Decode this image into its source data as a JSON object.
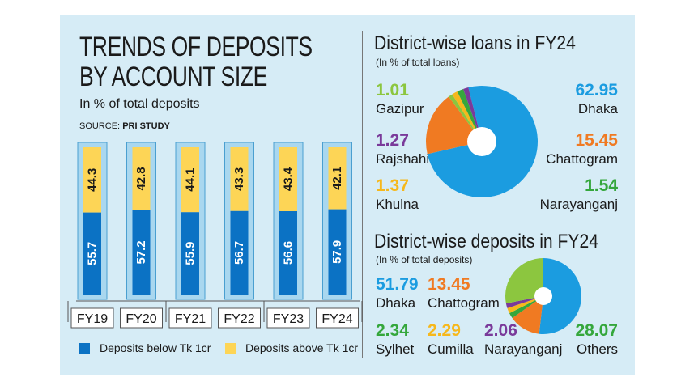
{
  "title": "TRENDS OF DEPOSITS BY ACCOUNT SIZE",
  "subtitle": "In % of total deposits",
  "source_label": "SOURCE:",
  "source_name": "PRI STUDY",
  "colors": {
    "below": "#0b72c4",
    "above": "#fdd556",
    "panel": "#d6ecf6",
    "dhaka": "#1b9ce0",
    "chattogram": "#f07a22",
    "green": "#35a73c",
    "purple": "#7a3a9a",
    "yellow": "#f6b81c",
    "lightgreen": "#8cc63f"
  },
  "legend": {
    "below": "Deposits below Tk 1cr",
    "above": "Deposits above Tk 1cr"
  },
  "loans": {
    "title": "District-wise loans in FY24",
    "subtitle": "(In % of total loans)",
    "items": [
      {
        "name": "Gazipur",
        "value": "1.01"
      },
      {
        "name": "Rajshahi",
        "value": "1.27"
      },
      {
        "name": "Khulna",
        "value": "1.37"
      },
      {
        "name": "Dhaka",
        "value": "62.95"
      },
      {
        "name": "Chattogram",
        "value": "15.45"
      },
      {
        "name": "Narayanganj",
        "value": "1.54"
      }
    ]
  },
  "deposits": {
    "title": "District-wise deposits in FY24",
    "subtitle": "(In % of total deposits)",
    "items": [
      {
        "name": "Dhaka",
        "value": "51.79"
      },
      {
        "name": "Chattogram",
        "value": "13.45"
      },
      {
        "name": "Sylhet",
        "value": "2.34"
      },
      {
        "name": "Cumilla",
        "value": "2.29"
      },
      {
        "name": "Narayanganj",
        "value": "2.06"
      },
      {
        "name": "Others",
        "value": "28.07"
      }
    ]
  },
  "chart_data": [
    {
      "type": "bar",
      "title": "TRENDS OF DEPOSITS BY ACCOUNT SIZE",
      "subtitle": "In % of total deposits",
      "categories": [
        "FY19",
        "FY20",
        "FY21",
        "FY22",
        "FY23",
        "FY24"
      ],
      "series": [
        {
          "name": "Deposits below Tk 1cr",
          "values": [
            55.7,
            57.2,
            55.9,
            56.7,
            56.6,
            57.9
          ]
        },
        {
          "name": "Deposits above Tk 1cr",
          "values": [
            44.3,
            42.8,
            44.1,
            43.3,
            43.4,
            42.1
          ]
        }
      ],
      "stacked": true,
      "ylim": [
        0,
        100
      ],
      "grid": false,
      "legend": "bottom"
    },
    {
      "type": "pie",
      "title": "District-wise loans in FY24",
      "subtitle": "(In % of total loans)",
      "donut": true,
      "labels": [
        "Dhaka",
        "Chattogram",
        "Gazipur",
        "Khulna",
        "Narayanganj",
        "Rajshahi"
      ],
      "values": [
        62.95,
        15.45,
        1.01,
        1.37,
        1.54,
        1.27
      ]
    },
    {
      "type": "pie",
      "title": "District-wise deposits in FY24",
      "subtitle": "(In % of total deposits)",
      "donut": true,
      "labels": [
        "Dhaka",
        "Chattogram",
        "Sylhet",
        "Cumilla",
        "Narayanganj",
        "Others"
      ],
      "values": [
        51.79,
        13.45,
        2.34,
        2.29,
        2.06,
        28.07
      ]
    }
  ]
}
